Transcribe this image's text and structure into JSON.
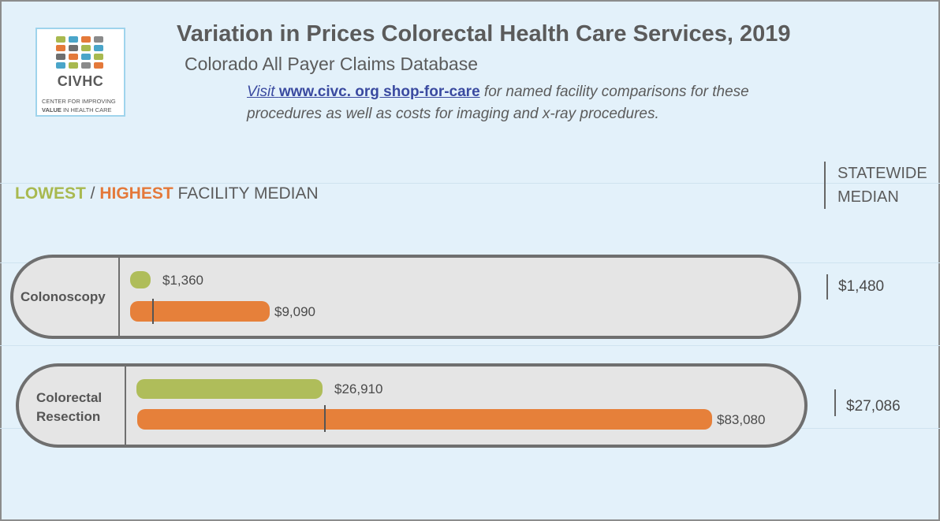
{
  "title": "Variation in Prices Colorectal Health Care Services, 2019",
  "subtitle": "Colorado All Payer Claims Database",
  "visit": {
    "lead": "Visit",
    "url": "www.civc. org shop-for-care",
    "text": " for named facility comparisons for these procedures as well as costs for imaging and x-ray procedures."
  },
  "logo": {
    "name": "CIVHC",
    "tagline_1": "CENTER FOR IMPROVING",
    "tagline_2_bold": "VALUE",
    "tagline_2_rest": " IN HEALTH CARE"
  },
  "legend": {
    "lowest": "LOWEST",
    "separator": " / ",
    "highest": "HIGHEST",
    "rest": " FACILITY MEDIAN"
  },
  "statewide_header_1": "STATEWIDE",
  "statewide_header_2": "MEDIAN",
  "colors": {
    "lowest": "#afbd5a",
    "highest": "#e6803a",
    "background": "#e3f1fa"
  },
  "chart_data": [
    {
      "type": "bar",
      "category": "Colonoscopy",
      "series": [
        {
          "name": "LOWEST",
          "value": 1360,
          "label": "$1,360"
        },
        {
          "name": "HIGHEST",
          "value": 9090,
          "label": "$9,090"
        }
      ],
      "statewide_median": 1480,
      "statewide_median_label": "$1,480"
    },
    {
      "type": "bar",
      "category": "Colorectal Resection",
      "category_lines": [
        "Colorectal",
        "Resection"
      ],
      "series": [
        {
          "name": "LOWEST",
          "value": 26910,
          "label": "$26,910"
        },
        {
          "name": "HIGHEST",
          "value": 83080,
          "label": "$83,080"
        }
      ],
      "statewide_median": 27086,
      "statewide_median_label": "$27,086"
    }
  ]
}
